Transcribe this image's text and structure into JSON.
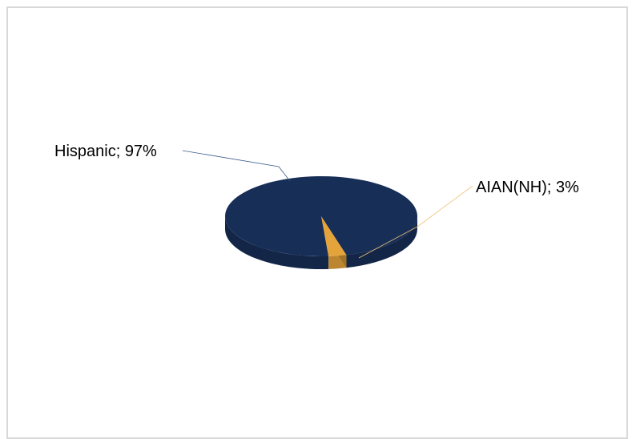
{
  "chart_data": {
    "type": "pie",
    "title": "",
    "slices": [
      {
        "label": "Hispanic",
        "value": 97,
        "display": "Hispanic; 97%",
        "color": "#172e57"
      },
      {
        "label": "AIAN(NH)",
        "value": 3,
        "display": "AIAN(NH); 3%",
        "color": "#e5a43b"
      }
    ],
    "legend": "none",
    "style": "3d-pie"
  }
}
